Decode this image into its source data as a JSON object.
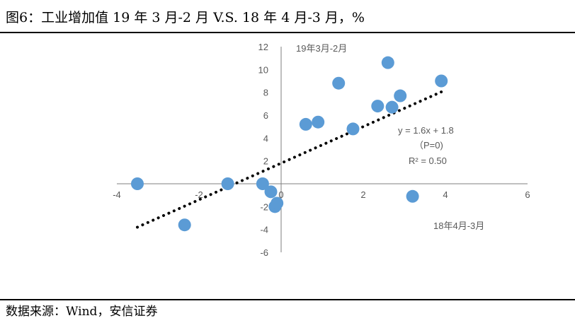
{
  "page": {
    "title": "图6：工业增加值 19 年 3 月-2 月 V.S. 18 年 4 月-3 月，%",
    "source": "数据来源：Wind，安信证券"
  },
  "colors": {
    "point": "#5B9BD5",
    "trendline": "#000000",
    "axis": "#7F7F7F",
    "text": "#595959"
  },
  "chart_data": {
    "type": "scatter",
    "title": "",
    "xlabel": "18年4月-3月",
    "ylabel": "19年3月-2月",
    "xlim": [
      -4,
      6
    ],
    "ylim": [
      -6,
      12
    ],
    "x_ticks": [
      -4,
      -2,
      0,
      2,
      4,
      6
    ],
    "y_ticks": [
      -6,
      -4,
      -2,
      0,
      2,
      4,
      6,
      8,
      10,
      12
    ],
    "grid": false,
    "legend": "none",
    "points": [
      {
        "x": -3.5,
        "y": 0.0
      },
      {
        "x": -2.35,
        "y": -3.6
      },
      {
        "x": -1.3,
        "y": 0.0
      },
      {
        "x": -0.45,
        "y": 0.0
      },
      {
        "x": -0.25,
        "y": -0.7
      },
      {
        "x": -0.15,
        "y": -2.0
      },
      {
        "x": -0.1,
        "y": -1.7
      },
      {
        "x": 0.6,
        "y": 5.2
      },
      {
        "x": 0.9,
        "y": 5.4
      },
      {
        "x": 1.4,
        "y": 8.8
      },
      {
        "x": 1.75,
        "y": 4.8
      },
      {
        "x": 2.35,
        "y": 6.8
      },
      {
        "x": 2.6,
        "y": 10.6
      },
      {
        "x": 2.7,
        "y": 6.7
      },
      {
        "x": 2.9,
        "y": 7.7
      },
      {
        "x": 3.2,
        "y": -1.1
      },
      {
        "x": 3.9,
        "y": 9.0
      }
    ],
    "trendline": {
      "x_range": [
        -3.5,
        3.9
      ],
      "slope": 1.6,
      "intercept": 1.8,
      "equation": "y = 1.6x + 1.8",
      "p_value": "（P=0)",
      "r_squared": "R² = 0.50"
    }
  }
}
